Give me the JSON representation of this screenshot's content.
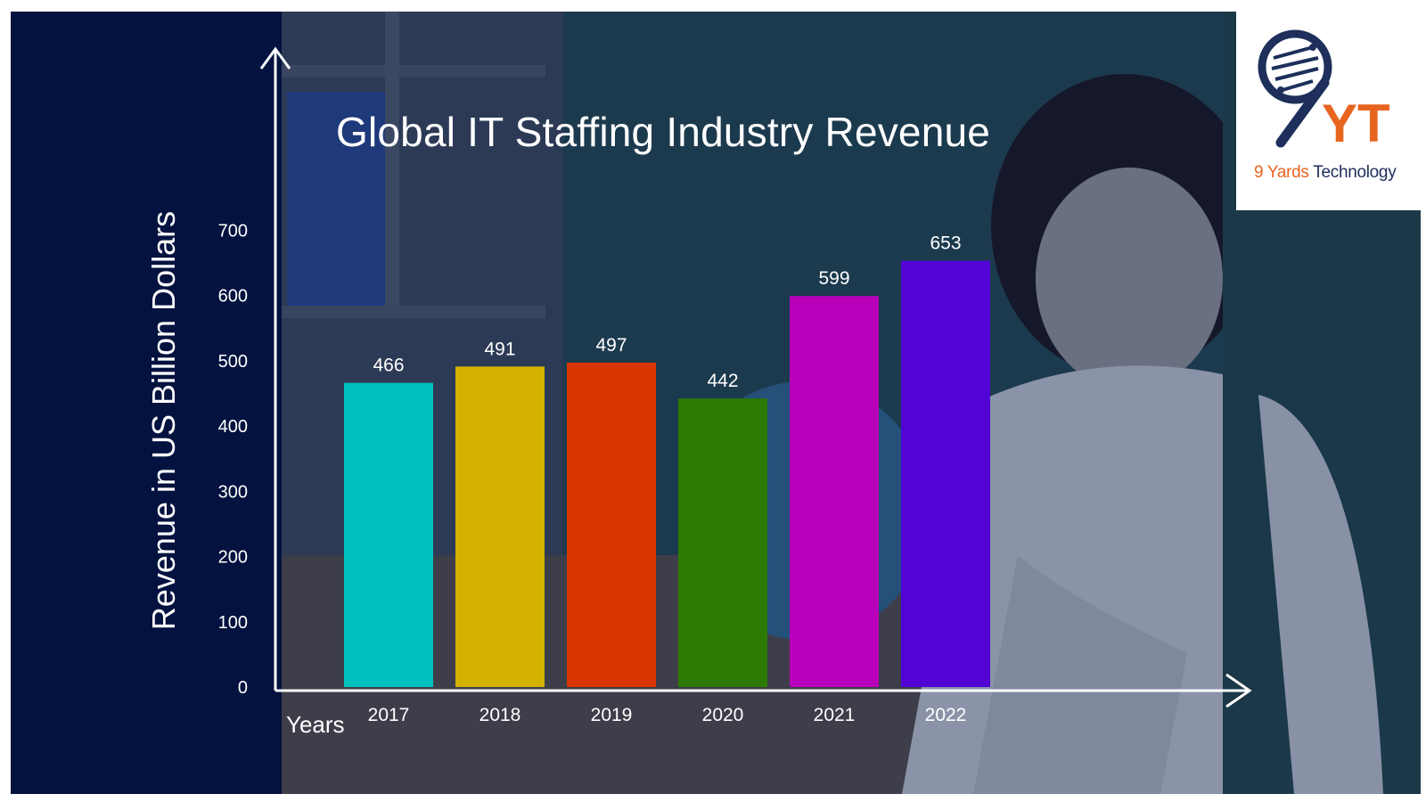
{
  "chart_data": {
    "type": "bar",
    "title": "Global IT Staffing Industry Revenue",
    "ylabel": "Revenue in US Billion Dollars",
    "xlabel": "Years",
    "categories": [
      "2017",
      "2018",
      "2019",
      "2020",
      "2021",
      "2022"
    ],
    "values": [
      466,
      491,
      497,
      442,
      599,
      653
    ],
    "bar_colors": [
      "#00c0bd",
      "#d3b300",
      "#da3602",
      "#2c7a00",
      "#b800bb",
      "#5104d4"
    ],
    "data_labels": [
      "466",
      "491",
      "497",
      "442",
      "599",
      "653"
    ],
    "yticks": [
      "0",
      "100",
      "200",
      "300",
      "400",
      "500",
      "600",
      "700"
    ],
    "ylim": [
      0,
      700
    ],
    "grid": false,
    "legend": "none",
    "axis_color": "#ffffff",
    "background_color": "#03123f"
  },
  "logo": {
    "mark": "YT",
    "word1": "9 Yards",
    "word2": "Technology",
    "accent_color": "#e8651f",
    "dark_color": "#1d2f5a"
  }
}
